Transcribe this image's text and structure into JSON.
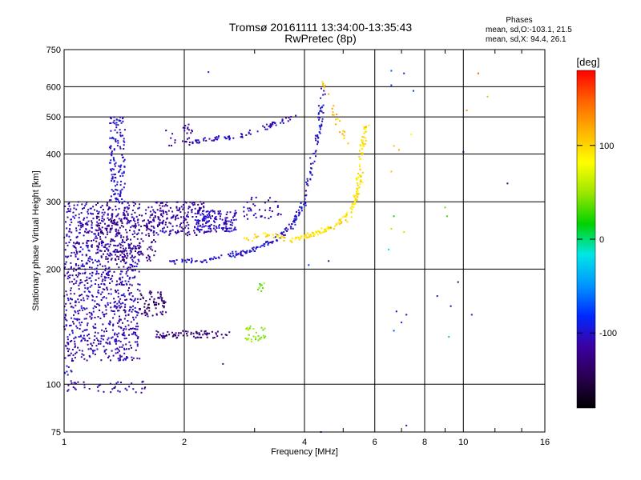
{
  "chart_data": {
    "type": "scatter",
    "title": "Tromsø 20161111 13:34:00-13:35:43",
    "subtitle": "RwPretec (8p)",
    "xlabel": "Frequency [MHz]",
    "ylabel": "Stationary phase Virtual Height [km]",
    "xscale": "log",
    "yscale": "log",
    "xlim": [
      1,
      16
    ],
    "ylim": [
      75,
      750
    ],
    "xticks": [
      1,
      2,
      4,
      6,
      8,
      10,
      16
    ],
    "xtick_labels": [
      "1",
      "2",
      "4",
      "6",
      "8",
      "10",
      "16"
    ],
    "yticks": [
      75,
      100,
      200,
      300,
      400,
      500,
      600,
      750
    ],
    "ytick_labels": [
      "75",
      "100",
      "200",
      "300",
      "400",
      "500",
      "600",
      "750"
    ],
    "grid": true,
    "phase_stats": {
      "heading": "Phases",
      "line_o": "mean, sd,O:-103.1, 21.5",
      "line_x": "mean, sd,X:  94.4, 26.1"
    },
    "colorbar": {
      "label": "[deg]",
      "range": [
        -180,
        180
      ],
      "ticks": [
        -100,
        0,
        100
      ],
      "tick_labels": [
        "-100",
        "0",
        "100"
      ],
      "colormap": [
        "#000000",
        "#2a0050",
        "#3c00a0",
        "#0028ff",
        "#0096ff",
        "#00e6e6",
        "#00d200",
        "#9be600",
        "#ffff00",
        "#ffb400",
        "#ff6400",
        "#ff0000"
      ]
    },
    "series": [
      {
        "component": "O",
        "color_range": [
          -150,
          -80
        ],
        "clusters": [
          {
            "x": [
              1.0,
              1.55
            ],
            "y": [
              115,
              300
            ],
            "n": 1000,
            "phase": -110
          },
          {
            "x": [
              1.3,
              1.42
            ],
            "y": [
              300,
              500
            ],
            "n": 140,
            "phase": -100
          },
          {
            "x": [
              1.2,
              1.7
            ],
            "y": [
              210,
              280
            ],
            "n": 200,
            "phase": -125
          },
          {
            "x": [
              1.6,
              2.25
            ],
            "y": [
              245,
              300
            ],
            "n": 220,
            "phase": -115
          },
          {
            "x": [
              1.7,
              2.6
            ],
            "y": [
              132,
              138
            ],
            "n": 80,
            "phase": -130
          },
          {
            "x": [
              1.55,
              1.8
            ],
            "y": [
              150,
              175
            ],
            "n": 70,
            "phase": -135
          },
          {
            "x": [
              2.15,
              2.7
            ],
            "y": [
              250,
              285
            ],
            "n": 150,
            "phase": -105
          },
          {
            "x": [
              2.8,
              3.5
            ],
            "y": [
              270,
              310
            ],
            "n": 40,
            "phase": -110
          },
          {
            "x": [
              1.8,
              2.1
            ],
            "y": [
              420,
              480
            ],
            "n": 25,
            "phase": -115
          },
          {
            "x": [
              1.0,
              1.6
            ],
            "y": [
              95,
              102
            ],
            "n": 45,
            "phase": -110
          },
          {
            "x": [
              1.0,
              1.05
            ],
            "y": [
              105,
              112
            ],
            "n": 8,
            "phase": -105
          }
        ],
        "traces": [
          {
            "points": [
              [
                1.85,
                210
              ],
              [
                2.2,
                210
              ],
              [
                2.6,
                216
              ],
              [
                3.0,
                225
              ],
              [
                3.4,
                240
              ],
              [
                3.7,
                258
              ],
              [
                3.95,
                290
              ],
              [
                4.15,
                360
              ],
              [
                4.35,
                460
              ],
              [
                4.45,
                590
              ]
            ],
            "n": 220,
            "phase": -100
          },
          {
            "points": [
              [
                2.0,
                428
              ],
              [
                2.5,
                440
              ],
              [
                3.0,
                455
              ],
              [
                3.5,
                488
              ],
              [
                3.8,
                505
              ]
            ],
            "n": 80,
            "phase": -105
          }
        ]
      },
      {
        "component": "X",
        "color_range": [
          60,
          140
        ],
        "traces": [
          {
            "points": [
              [
                3.7,
                238
              ],
              [
                4.2,
                246
              ],
              [
                4.7,
                258
              ],
              [
                5.1,
                272
              ],
              [
                5.35,
                300
              ],
              [
                5.5,
                345
              ],
              [
                5.6,
                420
              ],
              [
                5.7,
                480
              ]
            ],
            "n": 180,
            "phase": 95
          },
          {
            "points": [
              [
                2.8,
                240
              ],
              [
                3.2,
                246
              ],
              [
                3.6,
                240
              ]
            ],
            "n": 30,
            "phase": 100
          },
          {
            "points": [
              [
                4.4,
                620
              ],
              [
                4.6,
                560
              ],
              [
                4.9,
                470
              ],
              [
                5.2,
                420
              ]
            ],
            "n": 25,
            "phase": 110
          }
        ],
        "clusters": [
          {
            "x": [
              2.85,
              3.2
            ],
            "y": [
              128,
              142
            ],
            "n": 30,
            "phase": 45
          },
          {
            "x": [
              3.05,
              3.2
            ],
            "y": [
              175,
              185
            ],
            "n": 8,
            "phase": 40
          }
        ]
      },
      {
        "component": "scattered",
        "points": [
          [
            2.3,
            655,
            -90
          ],
          [
            6.6,
            660,
            -70
          ],
          [
            7.1,
            650,
            -90
          ],
          [
            6.6,
            605,
            -80
          ],
          [
            7.5,
            585,
            -80
          ],
          [
            10.9,
            650,
            150
          ],
          [
            11.5,
            565,
            50
          ],
          [
            10.2,
            520,
            130
          ],
          [
            7.4,
            450,
            80
          ],
          [
            6.7,
            420,
            110
          ],
          [
            6.9,
            410,
            120
          ],
          [
            10.0,
            405,
            -150
          ],
          [
            12.9,
            335,
            -130
          ],
          [
            6.6,
            360,
            110
          ],
          [
            9.0,
            290,
            40
          ],
          [
            6.7,
            275,
            20
          ],
          [
            9.1,
            275,
            30
          ],
          [
            6.6,
            255,
            60
          ],
          [
            7.1,
            250,
            60
          ],
          [
            6.5,
            225,
            -20
          ],
          [
            9.7,
            185,
            -140
          ],
          [
            8.6,
            170,
            -110
          ],
          [
            9.3,
            160,
            -120
          ],
          [
            6.8,
            155,
            -110
          ],
          [
            7.2,
            152,
            -110
          ],
          [
            10.5,
            152,
            -90
          ],
          [
            7.0,
            145,
            -90
          ],
          [
            6.7,
            138,
            -70
          ],
          [
            9.2,
            133,
            0
          ],
          [
            4.4,
            75,
            -100
          ],
          [
            7.2,
            78,
            -100
          ],
          [
            2.5,
            113,
            -110
          ],
          [
            4.1,
            205,
            -80
          ],
          [
            4.6,
            210,
            -130
          ]
        ]
      }
    ]
  }
}
